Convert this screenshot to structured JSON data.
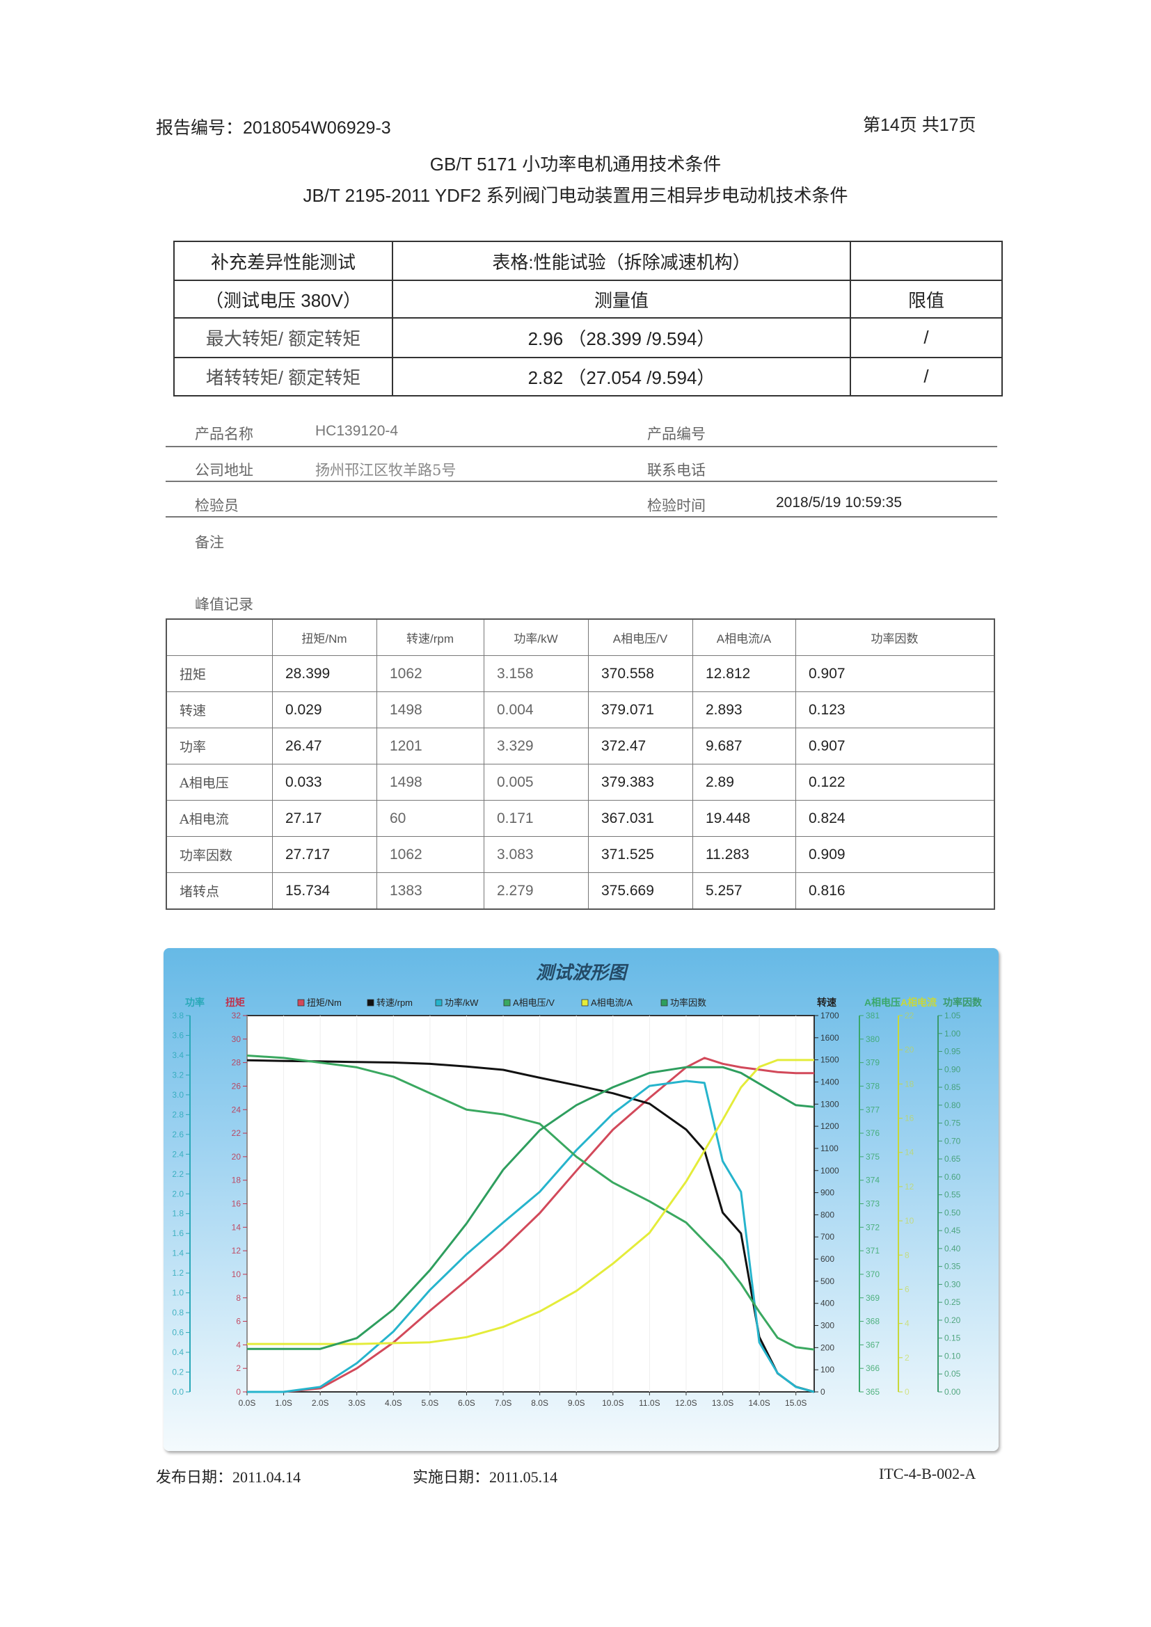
{
  "header": {
    "report_no": "报告编号：2018054W06929-3",
    "page": "第14页  共17页"
  },
  "standards": [
    "GB/T 5171  小功率电机通用技术条件",
    "JB/T 2195-2011 YDF2 系列阀门电动装置用三相异步电动机技术条件"
  ],
  "summary_table": {
    "title_line1": "补充差异性能测试",
    "title_line2": "（测试电压 380V）",
    "table_caption": "表格:性能试验（拆除减速机构）",
    "col_measured": "测量值",
    "col_limit": "限值",
    "rows": [
      {
        "label": "最大转矩/ 额定转矩",
        "value": "2.96  （28.399 /9.594）",
        "limit": "/"
      },
      {
        "label": "堵转转矩/ 额定转矩",
        "value": "2.82  （27.054 /9.594）",
        "limit": "/"
      }
    ]
  },
  "info": {
    "product_name_label": "产品名称",
    "product_name": "HC139120-4",
    "product_no_label": "产品编号",
    "address_label": "公司地址",
    "address": "扬州邗江区牧羊路5号",
    "phone_label": "联系电话",
    "inspector_label": "检验员",
    "time_label": "检验时间",
    "time": "2018/5/19 10:59:35",
    "remark_label": "备注",
    "peak_label": "峰值记录"
  },
  "peak_table": {
    "headers": [
      "",
      "扭矩/Nm",
      "转速/rpm",
      "功率/kW",
      "A相电压/V",
      "A相电流/A",
      "功率因数"
    ],
    "rows": [
      [
        "扭矩",
        "28.399",
        "1062",
        "3.158",
        "370.558",
        "12.812",
        "0.907"
      ],
      [
        "转速",
        "0.029",
        "1498",
        "0.004",
        "379.071",
        "2.893",
        "0.123"
      ],
      [
        "功率",
        "26.47",
        "1201",
        "3.329",
        "372.47",
        "9.687",
        "0.907"
      ],
      [
        "A相电压",
        "0.033",
        "1498",
        "0.005",
        "379.383",
        "2.89",
        "0.122"
      ],
      [
        "A相电流",
        "27.17",
        "60",
        "0.171",
        "367.031",
        "19.448",
        "0.824"
      ],
      [
        "功率因数",
        "27.717",
        "1062",
        "3.083",
        "371.525",
        "11.283",
        "0.909"
      ],
      [
        "堵转点",
        "15.734",
        "1383",
        "2.279",
        "375.669",
        "5.257",
        "0.816"
      ]
    ]
  },
  "chart_data": {
    "type": "line",
    "title": "测试波形图",
    "x": [
      0,
      1,
      2,
      3,
      4,
      5,
      6,
      7,
      8,
      9,
      10,
      11,
      12,
      12.5,
      13,
      13.5,
      14,
      14.5,
      15,
      15.5
    ],
    "xlim": [
      0,
      15.5
    ],
    "x_tick_labels": [
      "0.0S",
      "1.0S",
      "2.0S",
      "3.0S",
      "4.0S",
      "5.0S",
      "6.0S",
      "7.0S",
      "8.0S",
      "9.0S",
      "10.0S",
      "11.0S",
      "12.0S",
      "13.0S",
      "14.0S",
      "15.0S"
    ],
    "axes": {
      "power": {
        "title": "功率",
        "range": [
          0,
          3.8
        ],
        "step": 0.2,
        "decimals": 1,
        "color": "#2aa9b8"
      },
      "torque": {
        "title": "扭矩",
        "range": [
          0,
          32
        ],
        "step": 2,
        "decimals": 0,
        "color": "#c0304a"
      },
      "speed": {
        "title": "转速",
        "range": [
          0,
          1700
        ],
        "step": 100,
        "decimals": 0,
        "color": "#222222"
      },
      "voltage": {
        "title": "A相电压",
        "range": [
          365,
          381
        ],
        "step": 1,
        "decimals": 0,
        "color": "#3aa86a"
      },
      "current": {
        "title": "A相电流",
        "range": [
          0,
          22
        ],
        "step": 2,
        "decimals": 0,
        "color": "#c8d83a"
      },
      "pf": {
        "title": "功率因数",
        "range": [
          0,
          1.05
        ],
        "step": 0.05,
        "decimals": 2,
        "color": "#3a9a6a"
      }
    },
    "series": [
      {
        "name": "扭矩/Nm",
        "axis": "torque",
        "color": "#d2495a",
        "values": [
          0,
          0,
          0.3,
          2.0,
          4.2,
          6.9,
          9.5,
          12.2,
          15.2,
          18.8,
          22.3,
          25.0,
          27.6,
          28.4,
          27.9,
          27.6,
          27.4,
          27.2,
          27.1,
          27.1
        ]
      },
      {
        "name": "转速/rpm",
        "axis": "speed",
        "color": "#111111",
        "values": [
          1498,
          1495,
          1493,
          1490,
          1488,
          1482,
          1470,
          1455,
          1419,
          1385,
          1349,
          1302,
          1185,
          1091,
          810,
          716,
          248,
          84,
          23,
          0
        ]
      },
      {
        "name": "功率/kW",
        "axis": "power",
        "color": "#26b4cc",
        "values": [
          0,
          0,
          0.05,
          0.29,
          0.61,
          1.03,
          1.39,
          1.71,
          2.02,
          2.44,
          2.81,
          3.09,
          3.14,
          3.12,
          2.33,
          2.02,
          0.5,
          0.19,
          0.05,
          0
        ]
      },
      {
        "name": "A相电压/V",
        "axis": "voltage",
        "color": "#3aa860",
        "values": [
          379.3,
          379.2,
          379.0,
          378.8,
          378.4,
          377.7,
          377.0,
          376.8,
          376.4,
          375.0,
          373.9,
          373.1,
          372.2,
          371.4,
          370.6,
          369.6,
          368.4,
          367.3,
          366.9,
          366.8
        ]
      },
      {
        "name": "A相电流/A",
        "axis": "current",
        "color": "#e4ec3a",
        "values": [
          2.8,
          2.8,
          2.8,
          2.8,
          2.85,
          2.9,
          3.2,
          3.8,
          4.7,
          5.9,
          7.5,
          9.3,
          12.3,
          14.1,
          15.9,
          17.8,
          19.0,
          19.4,
          19.4,
          19.4
        ]
      },
      {
        "name": "功率因数",
        "axis": "pf",
        "color": "#2e9e5e",
        "values": [
          0.12,
          0.12,
          0.12,
          0.15,
          0.23,
          0.34,
          0.47,
          0.62,
          0.73,
          0.8,
          0.85,
          0.89,
          0.906,
          0.906,
          0.906,
          0.89,
          0.86,
          0.83,
          0.8,
          0.795
        ]
      }
    ]
  },
  "footer": {
    "publish": "发布日期：2011.04.14",
    "implement": "实施日期：2011.05.14",
    "code": "ITC-4-B-002-A"
  }
}
